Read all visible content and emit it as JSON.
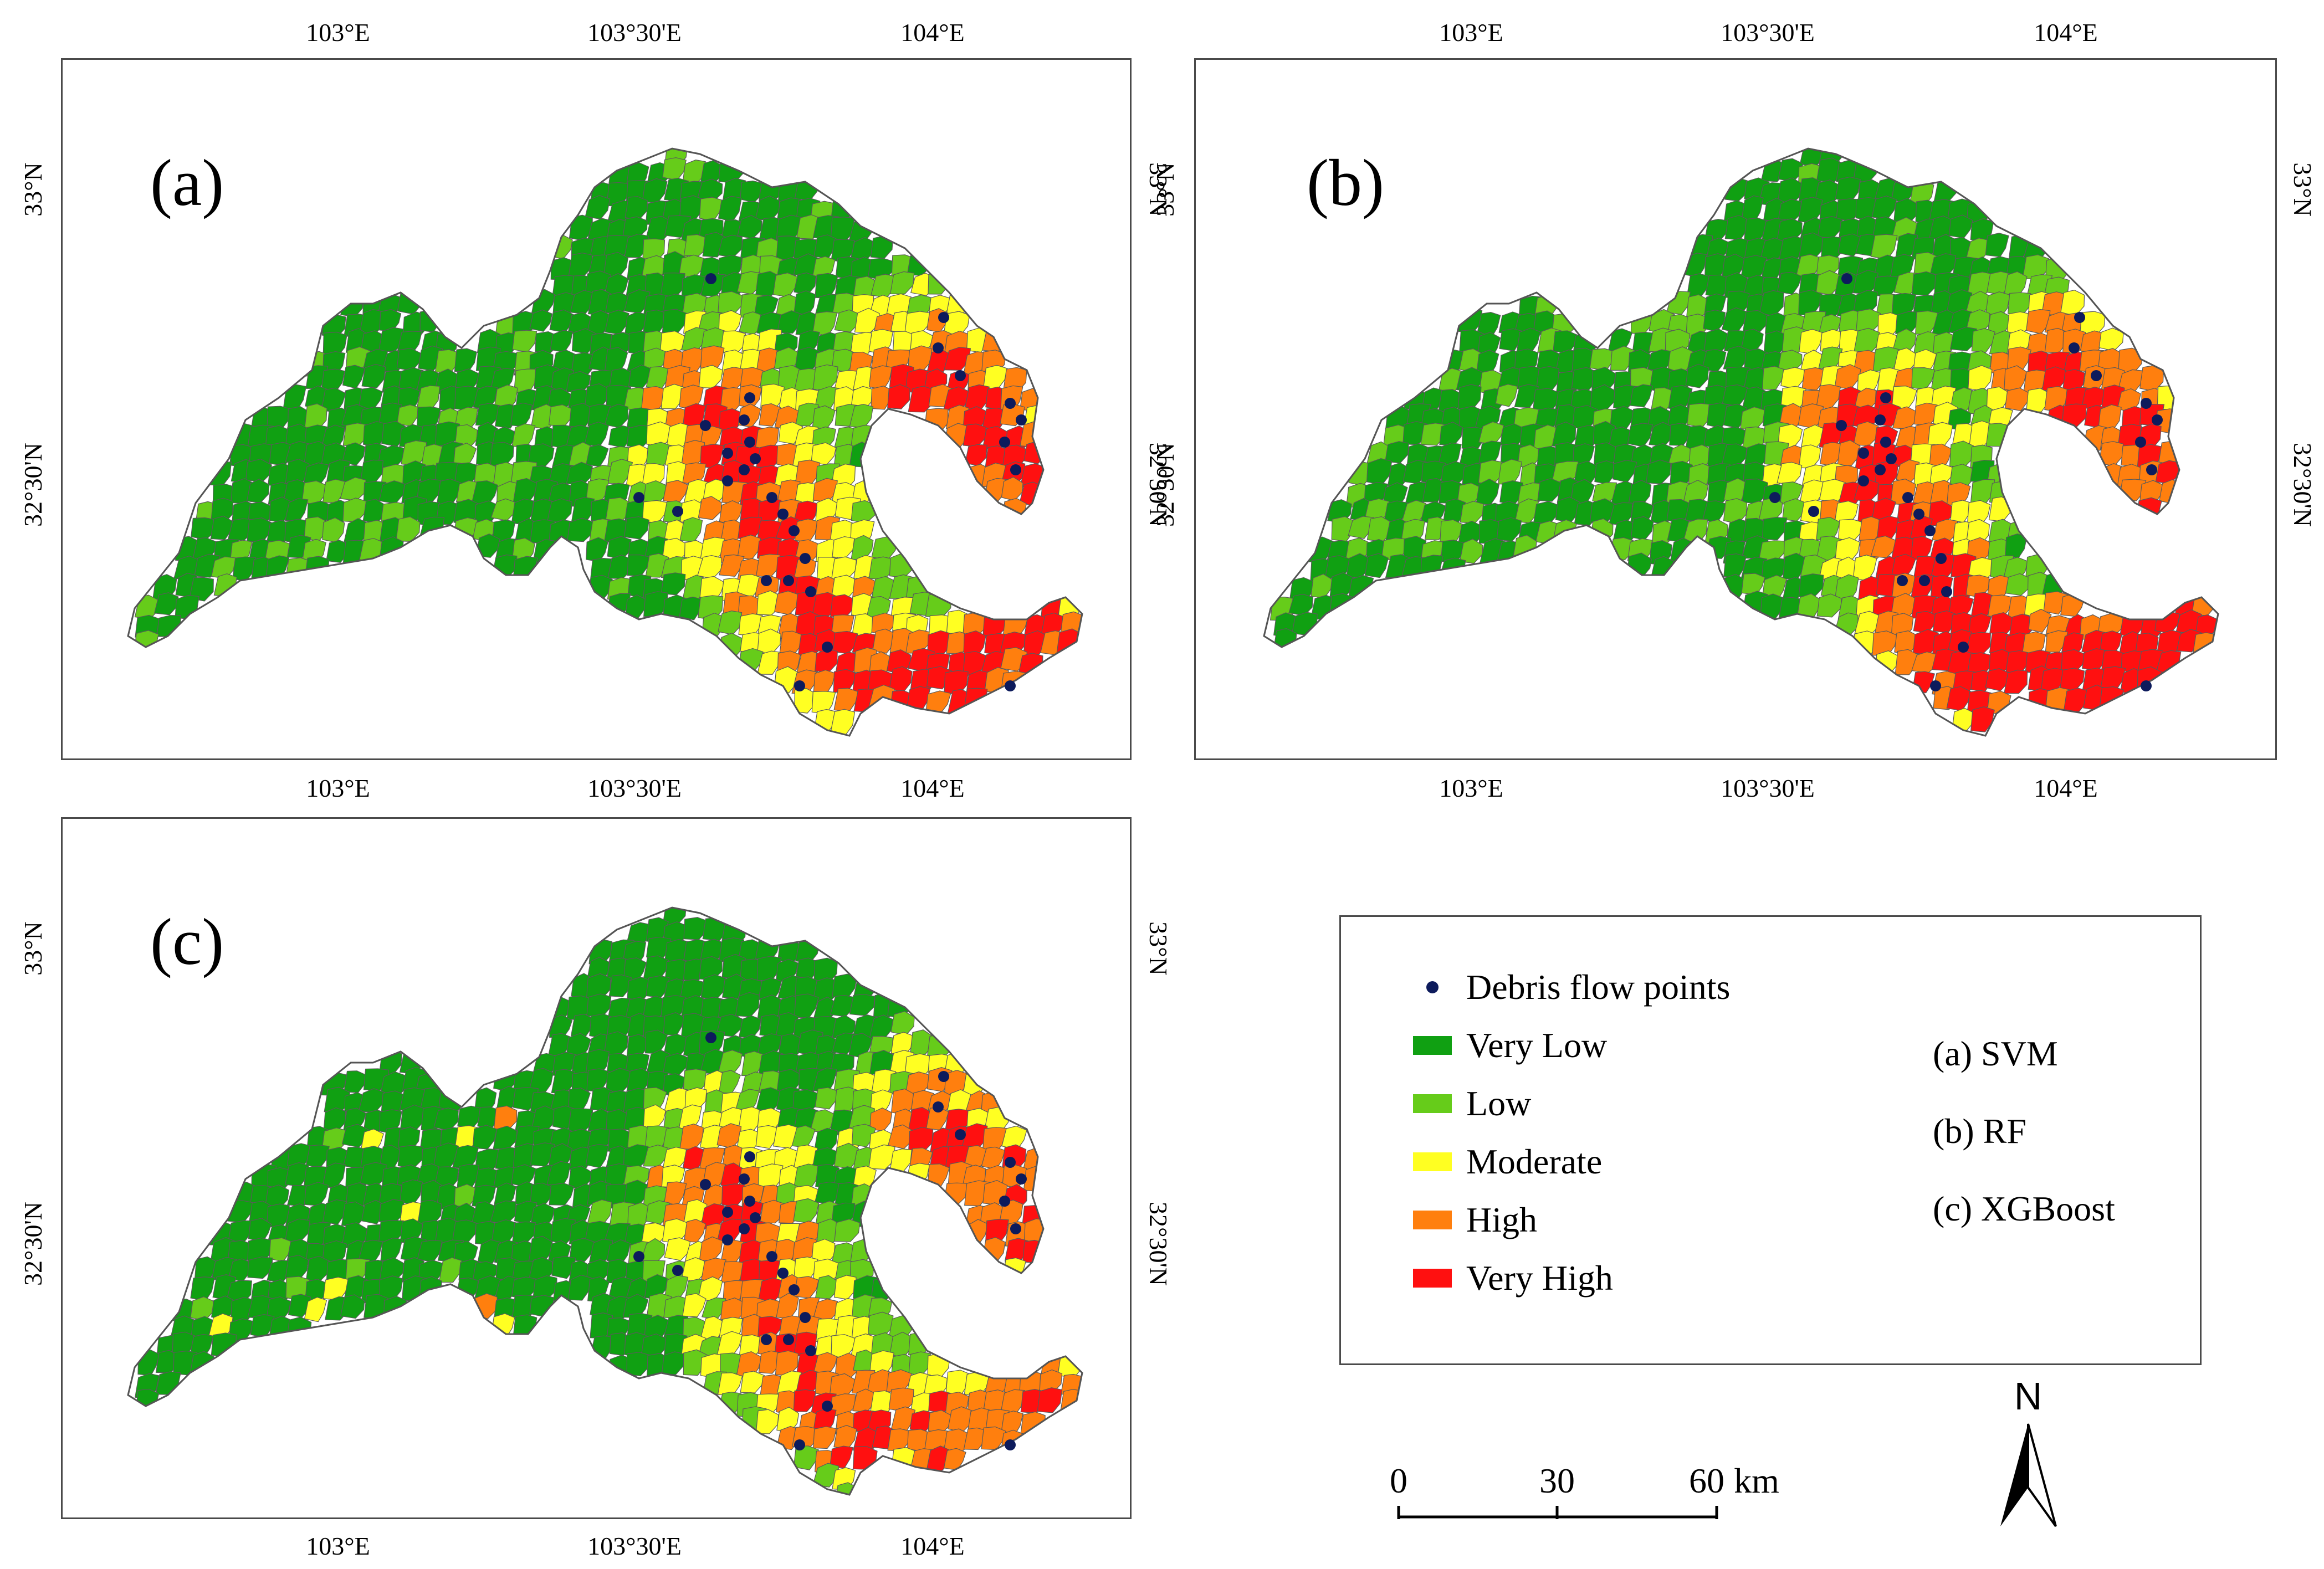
{
  "panels": [
    {
      "label": "(a)"
    },
    {
      "label": "(b)"
    },
    {
      "label": "(c)"
    }
  ],
  "axes": {
    "lon_ticks": [
      "103°E",
      "103°30'E",
      "104°E"
    ],
    "lat_ticks": [
      "33°N",
      "32°30'N"
    ]
  },
  "legend": {
    "points_label": "Debris flow points",
    "classes": [
      {
        "label": "Very Low",
        "color": "#10a012"
      },
      {
        "label": "Low",
        "color": "#66cc1a"
      },
      {
        "label": "Moderate",
        "color": "#ffff22"
      },
      {
        "label": "High",
        "color": "#ff7f0e"
      },
      {
        "label": "Very High",
        "color": "#ff1010"
      }
    ],
    "models": [
      "(a) SVM",
      "(b) RF",
      "(c) XGBoost"
    ]
  },
  "scale_bar": {
    "labels": [
      "0",
      "30",
      "60"
    ],
    "unit": "km"
  },
  "north_arrow": {
    "label": "N"
  },
  "colors": {
    "point": "#0d1b5c",
    "border": "#5a5a5a"
  }
}
